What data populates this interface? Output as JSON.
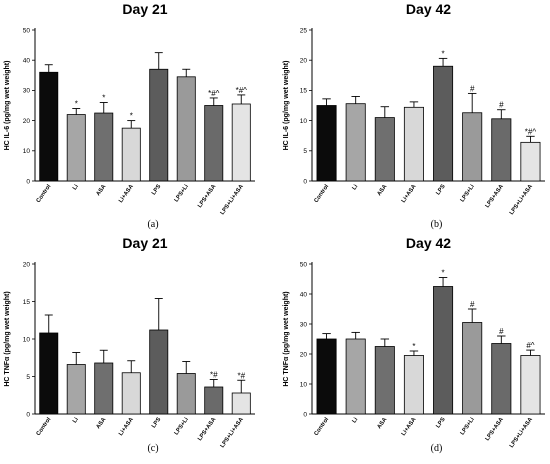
{
  "colors": {
    "Control": "#0b0b0b",
    "Li": "#a6a6a6",
    "ASA": "#6f6f6f",
    "Li+ASA": "#d8d8d8",
    "LPS": "#5c5c5c",
    "LPS+Li": "#9a9a9a",
    "LPS+ASA": "#6a6a6a",
    "LPS+Li+ASA": "#e4e4e4"
  },
  "chart_data": [
    {
      "type": "bar",
      "panel_label": "(a)",
      "title": "Day 21",
      "ylabel": "HC IL-6 (pg/mg wet weight)",
      "ylim": [
        0,
        50
      ],
      "yticks": [
        0,
        10,
        20,
        30,
        40,
        50
      ],
      "categories": [
        "Control",
        "Li",
        "ASA",
        "Li+ASA",
        "LPS",
        "LPS+Li",
        "LPS+ASA",
        "LPS+Li+ASA"
      ],
      "values": [
        36,
        22,
        22.5,
        17.5,
        37,
        34.5,
        25,
        25.5
      ],
      "errors": [
        2.5,
        2,
        3.5,
        2.5,
        5.5,
        2.5,
        2.5,
        3
      ],
      "annotations": [
        "",
        "*",
        "*",
        "*",
        "",
        "",
        "*#^",
        "*#^"
      ]
    },
    {
      "type": "bar",
      "panel_label": "(b)",
      "title": "Day 42",
      "ylabel": "HC IL-6 (pg/mg wet weight)",
      "ylim": [
        0,
        25
      ],
      "yticks": [
        0,
        5,
        10,
        15,
        20,
        25
      ],
      "categories": [
        "Control",
        "Li",
        "ASA",
        "Li+ASA",
        "LPS",
        "LPS+Li",
        "LPS+ASA",
        "LPS+Li+ASA"
      ],
      "values": [
        12.5,
        12.8,
        10.5,
        12.2,
        19,
        11.3,
        10.3,
        6.4
      ],
      "errors": [
        1.1,
        1.2,
        1.8,
        0.9,
        1.3,
        3.2,
        1.5,
        1
      ],
      "annotations": [
        "",
        "",
        "",
        "",
        "*",
        "#",
        "#",
        "*#^"
      ]
    },
    {
      "type": "bar",
      "panel_label": "(c)",
      "title": "Day 21",
      "ylabel": "HC TNFα (pg/mg wet weight)",
      "ylim": [
        0,
        20
      ],
      "yticks": [
        0,
        5,
        10,
        15,
        20
      ],
      "categories": [
        "Control",
        "Li",
        "ASA",
        "Li+ASA",
        "LPS",
        "LPS+Li",
        "LPS+ASA",
        "LPS+Li+ASA"
      ],
      "values": [
        10.8,
        6.6,
        6.8,
        5.5,
        11.2,
        5.4,
        3.6,
        2.8
      ],
      "errors": [
        2.4,
        1.6,
        1.7,
        1.6,
        4.2,
        1.6,
        1,
        1.7
      ],
      "annotations": [
        "",
        "",
        "",
        "",
        "",
        "",
        "*#",
        "*#"
      ]
    },
    {
      "type": "bar",
      "panel_label": "(d)",
      "title": "Day 42",
      "ylabel": "HC TNFα (pg/mg wet weight)",
      "ylim": [
        0,
        50
      ],
      "yticks": [
        0,
        10,
        20,
        30,
        40,
        50
      ],
      "categories": [
        "Control",
        "Li",
        "ASA",
        "Li+ASA",
        "LPS",
        "LPS+Li",
        "LPS+ASA",
        "LPS+Li+ASA"
      ],
      "values": [
        25,
        25,
        22.5,
        19.5,
        42.5,
        30.5,
        23.5,
        19.5
      ],
      "errors": [
        1.8,
        2.2,
        2.5,
        1.5,
        3,
        4.5,
        2.5,
        1.8
      ],
      "annotations": [
        "",
        "",
        "",
        "*",
        "*",
        "#",
        "#",
        "#^"
      ]
    }
  ]
}
